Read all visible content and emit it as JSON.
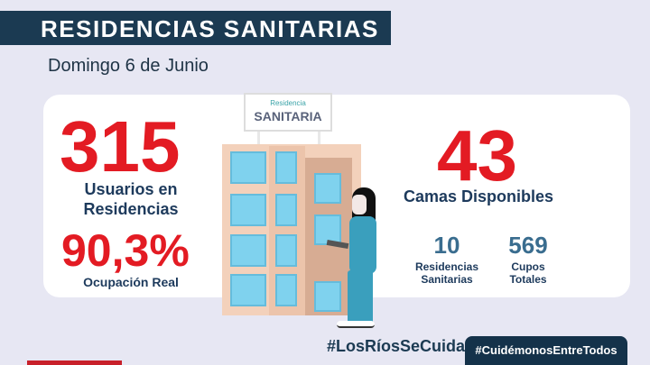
{
  "header": {
    "title": "RESIDENCIAS SANITARIAS",
    "date": "Domingo 6 de Junio"
  },
  "stats": {
    "users": {
      "value": "315",
      "label_line1": "Usuarios en",
      "label_line2": "Residencias"
    },
    "occupancy": {
      "value": "90,3%",
      "label": "Ocupación Real"
    },
    "beds": {
      "value": "43",
      "label": "Camas Disponibles"
    },
    "residences": {
      "value": "10",
      "label_line1": "Residencias",
      "label_line2": "Sanitarias"
    },
    "capacity": {
      "value": "569",
      "label_line1": "Cupos",
      "label_line2": "Totales"
    }
  },
  "sign": {
    "small": "Residencia",
    "big": "SANITARIA"
  },
  "footer": {
    "hashtag1": "#LosRíosSeCuida",
    "hashtag2": "#CuidémonosEntreTodos"
  },
  "colors": {
    "navy": "#1b3a52",
    "red": "#e31b23",
    "accent": "#3a6d8f"
  }
}
